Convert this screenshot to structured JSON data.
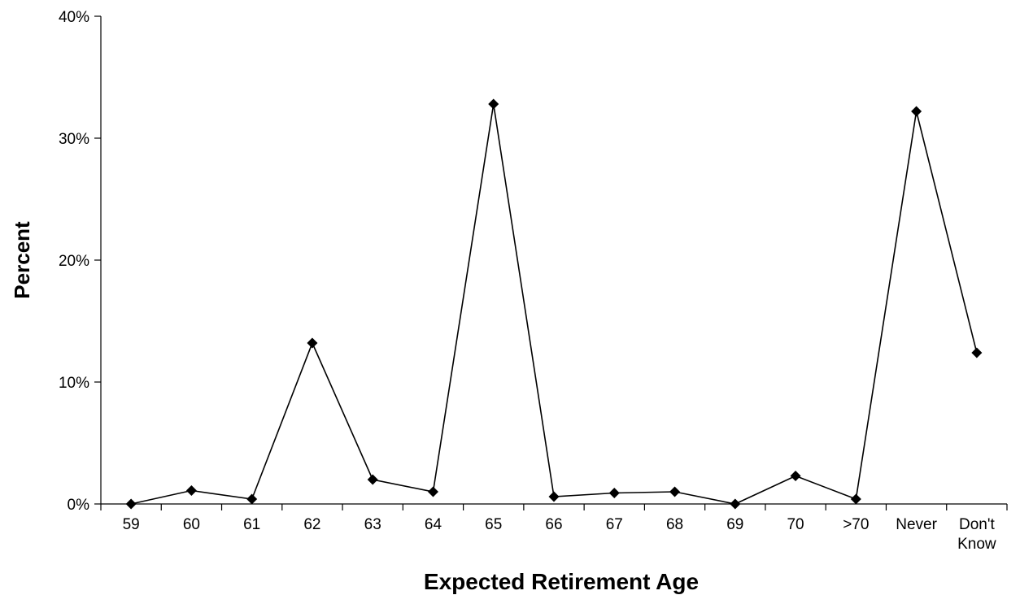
{
  "chart_data": {
    "type": "line",
    "title": "",
    "xlabel": "Expected Retirement Age",
    "ylabel": "Percent",
    "categories": [
      "59",
      "60",
      "61",
      "62",
      "63",
      "64",
      "65",
      "66",
      "67",
      "68",
      "69",
      "70",
      ">70",
      "Never",
      "Don't Know"
    ],
    "series": [
      {
        "values": [
          0.0,
          1.1,
          0.4,
          13.2,
          2.0,
          1.0,
          32.8,
          0.6,
          0.9,
          1.0,
          0.0,
          2.3,
          0.4,
          32.2,
          12.4
        ],
        "color": "#000000",
        "marker": "diamond"
      }
    ],
    "ylim": [
      0,
      40
    ],
    "yticks": [
      0,
      10,
      20,
      30,
      40
    ],
    "ytick_format": "percent",
    "grid": false,
    "legend": "none"
  }
}
